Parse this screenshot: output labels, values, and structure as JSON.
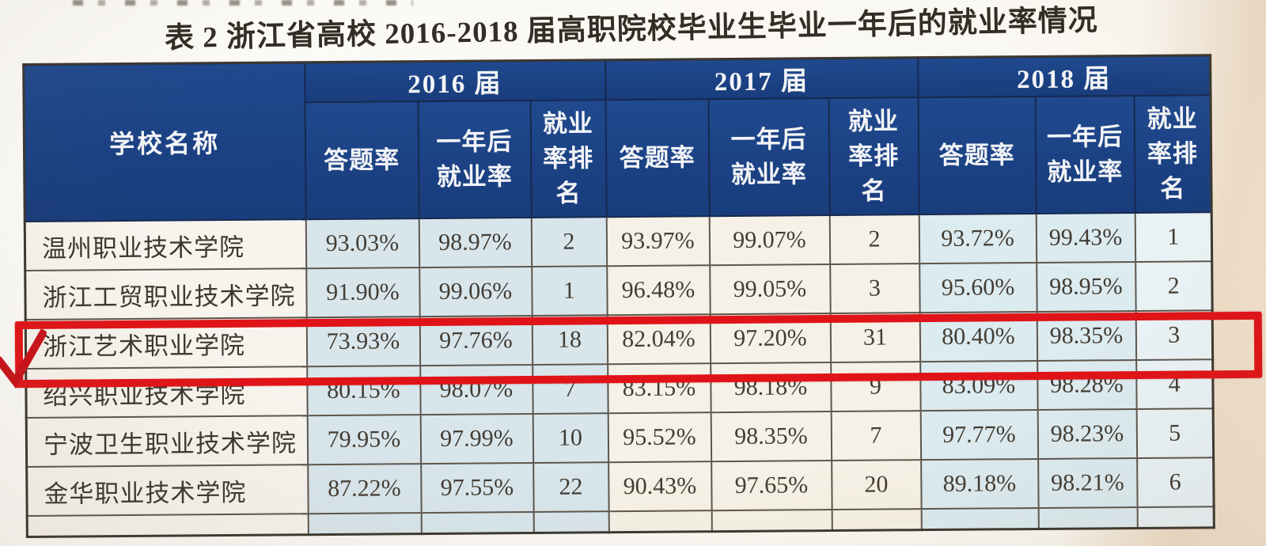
{
  "title": "表 2   浙江省高校 2016-2018 届高职院校毕业生毕业一年后的就业率情况",
  "colors": {
    "header_blue": "#1c4386",
    "light_blue_cell": "#d8e6ec",
    "cream_cell": "#f6f1e6",
    "highlight_red": "#e01418",
    "checkmark_red": "#c9121a"
  },
  "table": {
    "school_column_header": "学校名称",
    "year_groups": [
      "2016 届",
      "2017 届",
      "2018 届"
    ],
    "sub_headers": [
      "答题率",
      "一年后\n就业率",
      "就业\n率排\n名"
    ],
    "rows": [
      {
        "school": "温州职业技术学院",
        "values": [
          "93.03%",
          "98.97%",
          "2",
          "93.97%",
          "99.07%",
          "2",
          "93.72%",
          "99.43%",
          "1"
        ],
        "highlighted": false
      },
      {
        "school": "浙江工贸职业技术学院",
        "values": [
          "91.90%",
          "99.06%",
          "1",
          "96.48%",
          "99.05%",
          "3",
          "95.60%",
          "98.95%",
          "2"
        ],
        "highlighted": false
      },
      {
        "school": "浙江艺术职业学院",
        "values": [
          "73.93%",
          "97.76%",
          "18",
          "82.04%",
          "97.20%",
          "31",
          "80.40%",
          "98.35%",
          "3"
        ],
        "highlighted": true
      },
      {
        "school": "绍兴职业技术学院",
        "values": [
          "80.15%",
          "98.07%",
          "7",
          "83.15%",
          "98.18%",
          "9",
          "83.09%",
          "98.28%",
          "4"
        ],
        "highlighted": false
      },
      {
        "school": "宁波卫生职业技术学院",
        "values": [
          "79.95%",
          "97.99%",
          "10",
          "95.52%",
          "98.35%",
          "7",
          "97.77%",
          "98.23%",
          "5"
        ],
        "highlighted": false
      },
      {
        "school": "金华职业技术学院",
        "values": [
          "87.22%",
          "97.55%",
          "22",
          "90.43%",
          "97.65%",
          "20",
          "89.18%",
          "98.21%",
          "6"
        ],
        "highlighted": false
      }
    ],
    "annotation": {
      "type": "red-box-and-checkmark",
      "marked_row": "浙江艺术职业学院"
    }
  }
}
